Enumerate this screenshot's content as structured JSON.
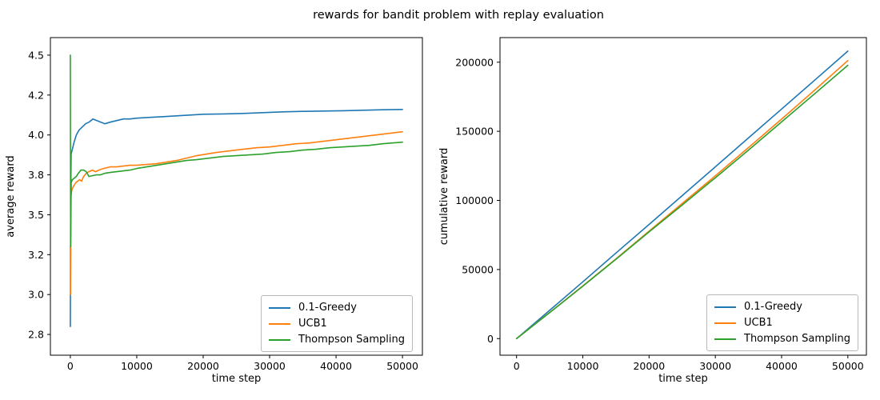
{
  "title": "rewards for bandit problem with replay evaluation",
  "colors": {
    "blue": "#1f77b4",
    "orange": "#ff7f0e",
    "green": "#2ca02c",
    "spine": "#000000",
    "legend_border": "#b9b9b9"
  },
  "chart_data": [
    {
      "type": "line",
      "name": "average-reward-plot",
      "xlabel": "time step",
      "ylabel": "average reward",
      "xlim": [
        -3000,
        53000
      ],
      "ylim": [
        2.62,
        4.61
      ],
      "xticks": [
        0,
        10000,
        20000,
        30000,
        40000,
        50000
      ],
      "xtick_labels": [
        "0",
        "10000",
        "20000",
        "30000",
        "40000",
        "50000"
      ],
      "yticks": [
        2.75,
        3.0,
        3.25,
        3.5,
        3.75,
        4.0,
        4.25,
        4.5
      ],
      "ytick_labels": [
        "2.8",
        "3.0",
        "3.2",
        "3.5",
        "3.8",
        "4.0",
        "4.2",
        "4.5"
      ],
      "grid": false,
      "legend_position": "lower right",
      "series": [
        {
          "name": "0.1-Greedy",
          "color": "#1f77b4",
          "points": [
            [
              0,
              2.8
            ],
            [
              60,
              3.62
            ],
            [
              120,
              3.88
            ],
            [
              300,
              3.91
            ],
            [
              600,
              3.96
            ],
            [
              900,
              4.0
            ],
            [
              1300,
              4.03
            ],
            [
              1800,
              4.05
            ],
            [
              2300,
              4.07
            ],
            [
              2800,
              4.08
            ],
            [
              3400,
              4.1
            ],
            [
              4000,
              4.09
            ],
            [
              4600,
              4.08
            ],
            [
              5200,
              4.07
            ],
            [
              6000,
              4.08
            ],
            [
              7000,
              4.09
            ],
            [
              8000,
              4.1
            ],
            [
              9000,
              4.1
            ],
            [
              10000,
              4.105
            ],
            [
              12000,
              4.11
            ],
            [
              14000,
              4.115
            ],
            [
              16000,
              4.12
            ],
            [
              18000,
              4.125
            ],
            [
              20000,
              4.13
            ],
            [
              23000,
              4.132
            ],
            [
              26000,
              4.135
            ],
            [
              29000,
              4.14
            ],
            [
              32000,
              4.145
            ],
            [
              35000,
              4.148
            ],
            [
              38000,
              4.15
            ],
            [
              41000,
              4.152
            ],
            [
              44000,
              4.155
            ],
            [
              47000,
              4.158
            ],
            [
              50000,
              4.16
            ]
          ]
        },
        {
          "name": "UCB1",
          "color": "#ff7f0e",
          "points": [
            [
              0,
              3.3
            ],
            [
              40,
              3.0
            ],
            [
              100,
              3.62
            ],
            [
              250,
              3.66
            ],
            [
              500,
              3.68
            ],
            [
              800,
              3.7
            ],
            [
              1100,
              3.71
            ],
            [
              1400,
              3.72
            ],
            [
              1700,
              3.71
            ],
            [
              2000,
              3.74
            ],
            [
              2400,
              3.76
            ],
            [
              2800,
              3.77
            ],
            [
              3300,
              3.78
            ],
            [
              3800,
              3.77
            ],
            [
              4300,
              3.78
            ],
            [
              5000,
              3.79
            ],
            [
              6000,
              3.8
            ],
            [
              7000,
              3.8
            ],
            [
              8000,
              3.805
            ],
            [
              9000,
              3.81
            ],
            [
              10000,
              3.81
            ],
            [
              11500,
              3.815
            ],
            [
              13000,
              3.82
            ],
            [
              14500,
              3.83
            ],
            [
              16000,
              3.84
            ],
            [
              17500,
              3.855
            ],
            [
              19000,
              3.87
            ],
            [
              20500,
              3.88
            ],
            [
              22000,
              3.89
            ],
            [
              24000,
              3.9
            ],
            [
              26000,
              3.91
            ],
            [
              28000,
              3.92
            ],
            [
              30000,
              3.925
            ],
            [
              32000,
              3.935
            ],
            [
              34000,
              3.945
            ],
            [
              36000,
              3.95
            ],
            [
              38000,
              3.96
            ],
            [
              40000,
              3.97
            ],
            [
              42000,
              3.98
            ],
            [
              44000,
              3.99
            ],
            [
              46000,
              4.0
            ],
            [
              48000,
              4.01
            ],
            [
              50000,
              4.02
            ]
          ]
        },
        {
          "name": "Thompson Sampling",
          "color": "#2ca02c",
          "points": [
            [
              0,
              4.5
            ],
            [
              50,
              3.3
            ],
            [
              130,
              3.7
            ],
            [
              300,
              3.72
            ],
            [
              600,
              3.73
            ],
            [
              900,
              3.74
            ],
            [
              1200,
              3.76
            ],
            [
              1600,
              3.78
            ],
            [
              2000,
              3.78
            ],
            [
              2400,
              3.77
            ],
            [
              2800,
              3.74
            ],
            [
              3300,
              3.745
            ],
            [
              3900,
              3.75
            ],
            [
              4500,
              3.75
            ],
            [
              5200,
              3.76
            ],
            [
              6000,
              3.765
            ],
            [
              7000,
              3.77
            ],
            [
              8000,
              3.775
            ],
            [
              9000,
              3.78
            ],
            [
              10000,
              3.79
            ],
            [
              11500,
              3.8
            ],
            [
              13000,
              3.81
            ],
            [
              14500,
              3.82
            ],
            [
              16000,
              3.83
            ],
            [
              17500,
              3.84
            ],
            [
              19000,
              3.845
            ],
            [
              21000,
              3.855
            ],
            [
              23000,
              3.865
            ],
            [
              25000,
              3.87
            ],
            [
              27000,
              3.875
            ],
            [
              29000,
              3.88
            ],
            [
              31000,
              3.89
            ],
            [
              33000,
              3.895
            ],
            [
              35000,
              3.905
            ],
            [
              37000,
              3.91
            ],
            [
              39000,
              3.92
            ],
            [
              41000,
              3.925
            ],
            [
              43000,
              3.93
            ],
            [
              45000,
              3.935
            ],
            [
              47000,
              3.945
            ],
            [
              50000,
              3.955
            ]
          ]
        }
      ]
    },
    {
      "type": "line",
      "name": "cumulative-reward-plot",
      "xlabel": "time step",
      "ylabel": "cumulative reward",
      "xlim": [
        -2500,
        52800
      ],
      "ylim": [
        -12000,
        217800
      ],
      "xticks": [
        0,
        10000,
        20000,
        30000,
        40000,
        50000
      ],
      "xtick_labels": [
        "0",
        "10000",
        "20000",
        "30000",
        "40000",
        "50000"
      ],
      "yticks": [
        0,
        50000,
        100000,
        150000,
        200000
      ],
      "ytick_labels": [
        "0",
        "50000",
        "100000",
        "150000",
        "200000"
      ],
      "grid": false,
      "legend_position": "lower right",
      "series": [
        {
          "name": "0.1-Greedy",
          "color": "#1f77b4",
          "points": [
            [
              0,
              0
            ],
            [
              5000,
              20500
            ],
            [
              10000,
              41100
            ],
            [
              15000,
              61900
            ],
            [
              20000,
              82600
            ],
            [
              25000,
              103500
            ],
            [
              30000,
              124300
            ],
            [
              35000,
              145200
            ],
            [
              40000,
              166100
            ],
            [
              45000,
              187000
            ],
            [
              50000,
              208000
            ]
          ]
        },
        {
          "name": "UCB1",
          "color": "#ff7f0e",
          "points": [
            [
              0,
              0
            ],
            [
              5000,
              18900
            ],
            [
              10000,
              38100
            ],
            [
              15000,
              57700
            ],
            [
              20000,
              77700
            ],
            [
              25000,
              97800
            ],
            [
              30000,
              117800
            ],
            [
              35000,
              138200
            ],
            [
              40000,
              158800
            ],
            [
              45000,
              179800
            ],
            [
              50000,
              201200
            ]
          ]
        },
        {
          "name": "Thompson Sampling",
          "color": "#2ca02c",
          "points": [
            [
              0,
              0
            ],
            [
              5000,
              18800
            ],
            [
              10000,
              37900
            ],
            [
              15000,
              57400
            ],
            [
              20000,
              77200
            ],
            [
              25000,
              96700
            ],
            [
              30000,
              116400
            ],
            [
              35000,
              136400
            ],
            [
              40000,
              156800
            ],
            [
              45000,
              177200
            ],
            [
              50000,
              197800
            ]
          ]
        }
      ]
    }
  ]
}
